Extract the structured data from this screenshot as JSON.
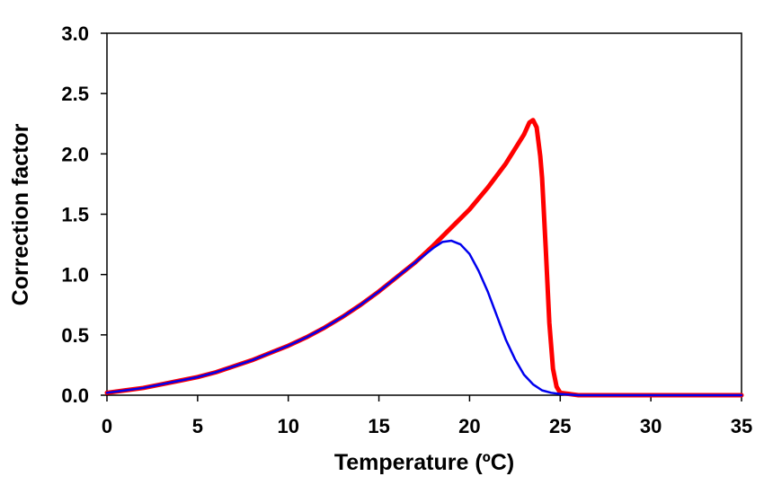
{
  "chart_data": {
    "type": "line",
    "xlabel": "Temperature (ºC)",
    "ylabel": "Correction factor",
    "xlim": [
      0,
      35
    ],
    "ylim": [
      0,
      3.0
    ],
    "xticks": [
      0,
      5,
      10,
      15,
      20,
      25,
      30,
      35
    ],
    "yticks": [
      0.0,
      0.5,
      1.0,
      1.5,
      2.0,
      2.5,
      3.0
    ],
    "ytick_labels": [
      "0.0",
      "0.5",
      "1.0",
      "1.5",
      "2.0",
      "2.5",
      "3.0"
    ],
    "grid": false,
    "series": [
      {
        "color": "#ff0000",
        "x": [
          0,
          1,
          2,
          3,
          4,
          5,
          6,
          7,
          8,
          9,
          10,
          11,
          12,
          13,
          14,
          15,
          16,
          17,
          18,
          19,
          20,
          21,
          22,
          22.5,
          23,
          23.3,
          23.5,
          23.7,
          23.9,
          24.0,
          24.2,
          24.4,
          24.6,
          24.8,
          25.0,
          25.5,
          26,
          28,
          30,
          32,
          35
        ],
        "y": [
          0.02,
          0.04,
          0.06,
          0.09,
          0.12,
          0.15,
          0.19,
          0.24,
          0.29,
          0.35,
          0.41,
          0.48,
          0.56,
          0.65,
          0.75,
          0.86,
          0.98,
          1.1,
          1.24,
          1.39,
          1.54,
          1.72,
          1.92,
          2.04,
          2.16,
          2.26,
          2.28,
          2.22,
          1.98,
          1.8,
          1.22,
          0.6,
          0.22,
          0.07,
          0.02,
          0.01,
          0.0,
          0.0,
          0.0,
          0.0,
          0.0
        ]
      },
      {
        "color": "#0000ee",
        "x": [
          0,
          1,
          2,
          3,
          4,
          5,
          6,
          7,
          8,
          9,
          10,
          11,
          12,
          13,
          14,
          15,
          16,
          17,
          18,
          18.5,
          19,
          19.5,
          20,
          20.5,
          21,
          21.5,
          22,
          22.5,
          23,
          23.5,
          24,
          24.5,
          25,
          26,
          27,
          30,
          35
        ],
        "y": [
          0.02,
          0.04,
          0.06,
          0.09,
          0.12,
          0.15,
          0.19,
          0.24,
          0.29,
          0.35,
          0.41,
          0.48,
          0.56,
          0.65,
          0.75,
          0.86,
          0.98,
          1.1,
          1.22,
          1.27,
          1.28,
          1.25,
          1.17,
          1.03,
          0.86,
          0.66,
          0.46,
          0.3,
          0.17,
          0.09,
          0.04,
          0.02,
          0.01,
          0.0,
          0.0,
          0.0,
          0.0
        ]
      }
    ]
  }
}
